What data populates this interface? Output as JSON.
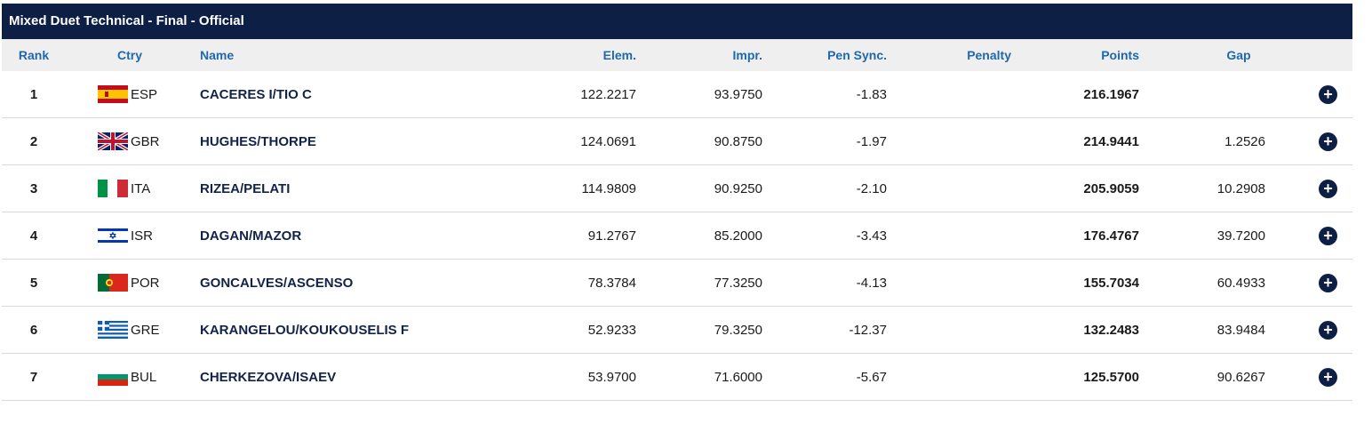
{
  "title": "Mixed Duet Technical - Final  -  Official",
  "columns": {
    "rank": "Rank",
    "ctry": "Ctry",
    "name": "Name",
    "elem": "Elem.",
    "impr": "Impr.",
    "pen_sync": "Pen Sync.",
    "penalty": "Penalty",
    "points": "Points",
    "gap": "Gap"
  },
  "expand_icon": "plus-circle-icon",
  "rows": [
    {
      "rank": "1",
      "ctry": "ESP",
      "flag": "flag-spain-icon",
      "name": "CACERES I/TIO C",
      "elem": "122.2217",
      "impr": "93.9750",
      "pen_sync": "-1.83",
      "penalty": "",
      "points": "216.1967",
      "gap": ""
    },
    {
      "rank": "2",
      "ctry": "GBR",
      "flag": "flag-uk-icon",
      "name": "HUGHES/THORPE",
      "elem": "124.0691",
      "impr": "90.8750",
      "pen_sync": "-1.97",
      "penalty": "",
      "points": "214.9441",
      "gap": "1.2526"
    },
    {
      "rank": "3",
      "ctry": "ITA",
      "flag": "flag-italy-icon",
      "name": "RIZEA/PELATI",
      "elem": "114.9809",
      "impr": "90.9250",
      "pen_sync": "-2.10",
      "penalty": "",
      "points": "205.9059",
      "gap": "10.2908"
    },
    {
      "rank": "4",
      "ctry": "ISR",
      "flag": "flag-israel-icon",
      "name": "DAGAN/MAZOR",
      "elem": "91.2767",
      "impr": "85.2000",
      "pen_sync": "-3.43",
      "penalty": "",
      "points": "176.4767",
      "gap": "39.7200"
    },
    {
      "rank": "5",
      "ctry": "POR",
      "flag": "flag-portugal-icon",
      "name": "GONCALVES/ASCENSO",
      "elem": "78.3784",
      "impr": "77.3250",
      "pen_sync": "-4.13",
      "penalty": "",
      "points": "155.7034",
      "gap": "60.4933"
    },
    {
      "rank": "6",
      "ctry": "GRE",
      "flag": "flag-greece-icon",
      "name": "KARANGELOU/KOUKOUSELIS F",
      "elem": "52.9233",
      "impr": "79.3250",
      "pen_sync": "-12.37",
      "penalty": "",
      "points": "132.2483",
      "gap": "83.9484"
    },
    {
      "rank": "7",
      "ctry": "BUL",
      "flag": "flag-bulgaria-icon",
      "name": "CHERKEZOVA/ISAEV",
      "elem": "53.9700",
      "impr": "71.6000",
      "pen_sync": "-5.67",
      "penalty": "",
      "points": "125.5700",
      "gap": "90.6267"
    }
  ]
}
